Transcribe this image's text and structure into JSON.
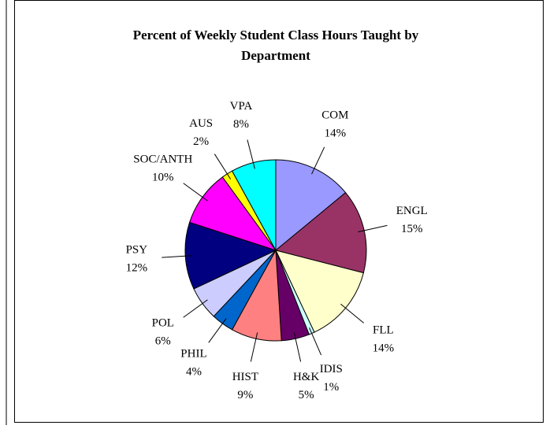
{
  "chart_data": {
    "type": "pie",
    "title": [
      "Percent of Weekly Student Class Hours Taught by",
      "Department"
    ],
    "categories": [
      "COM",
      "ENGL",
      "FLL",
      "IDIS",
      "H&K",
      "HIST",
      "PHIL",
      "POL",
      "PSY",
      "SOC/ANTH",
      "AUS",
      "VPA"
    ],
    "values": [
      14,
      15,
      14,
      1,
      5,
      9,
      4,
      6,
      12,
      10,
      2,
      8
    ],
    "value_labels": [
      "14%",
      "15%",
      "14%",
      "1%",
      "5%",
      "9%",
      "4%",
      "6%",
      "12%",
      "10%",
      "2%",
      "8%"
    ],
    "colors": [
      "#9999ff",
      "#993366",
      "#ffffcc",
      "#ccffff",
      "#660066",
      "#ff8080",
      "#0066cc",
      "#ccccff",
      "#000080",
      "#ff00ff",
      "#ffff00",
      "#00ffff"
    ]
  }
}
